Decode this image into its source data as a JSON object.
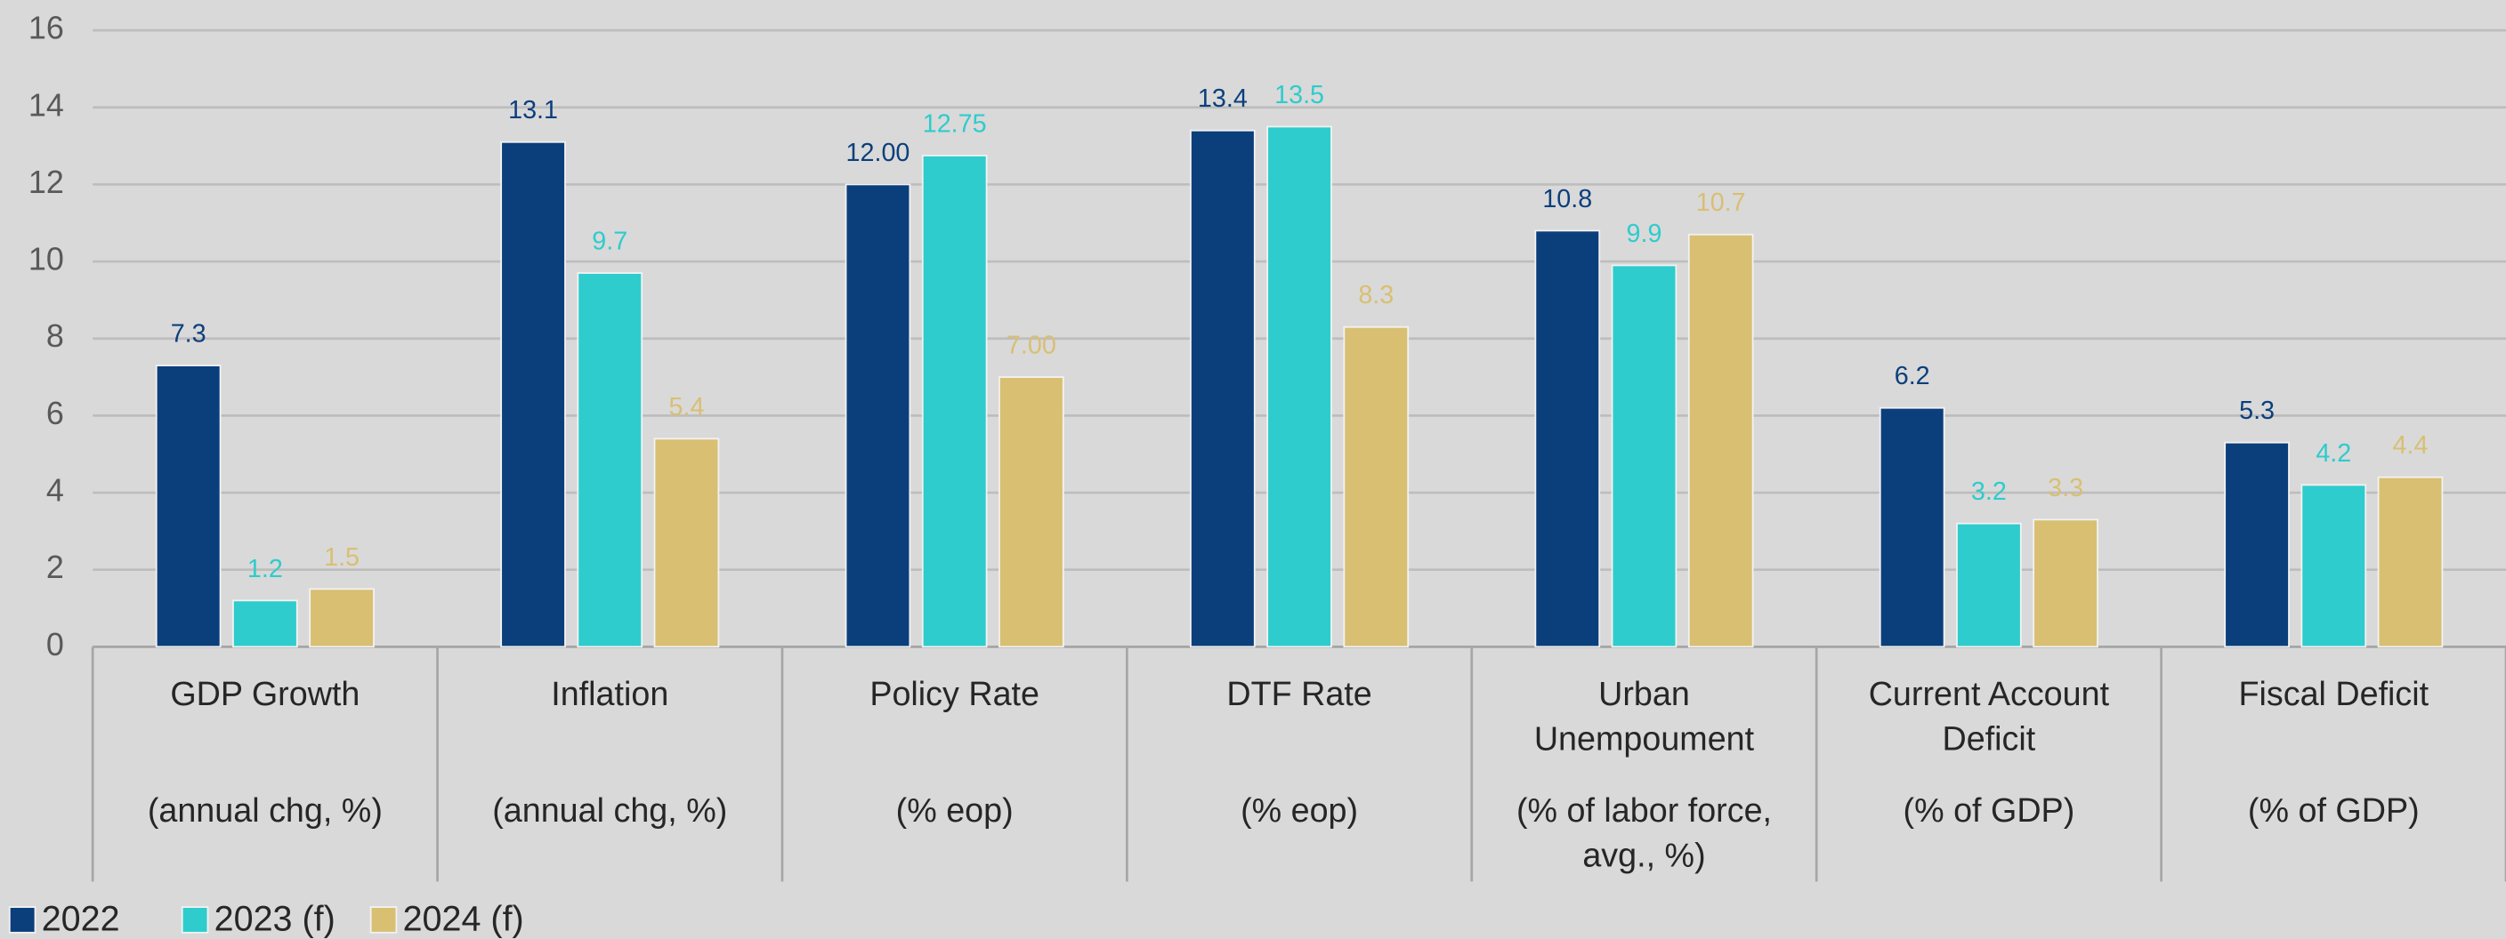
{
  "chart_data": {
    "type": "bar",
    "categories": [
      {
        "name": [
          "GDP Growth"
        ],
        "unit": [
          "(annual chg, %)"
        ]
      },
      {
        "name": [
          "Inflation"
        ],
        "unit": [
          "(annual chg, %)"
        ]
      },
      {
        "name": [
          "Policy Rate"
        ],
        "unit": [
          "(% eop)"
        ]
      },
      {
        "name": [
          "DTF Rate"
        ],
        "unit": [
          "(% eop)"
        ]
      },
      {
        "name": [
          "Urban",
          "Unempoument"
        ],
        "unit": [
          "(% of labor force,",
          "avg., %)"
        ]
      },
      {
        "name": [
          "Current Account",
          "Deficit"
        ],
        "unit": [
          "(% of GDP)"
        ]
      },
      {
        "name": [
          "Fiscal Deficit"
        ],
        "unit": [
          "(% of GDP)"
        ]
      }
    ],
    "series": [
      {
        "name": "2022",
        "color": "#0b3f7c",
        "values": [
          7.3,
          13.1,
          12,
          13.4,
          10.8,
          6.2,
          5.3
        ],
        "value_labels": [
          "7.3",
          "13.1",
          "12.00",
          "13.4",
          "10.8",
          "6.2",
          "5.3"
        ]
      },
      {
        "name": "2023 (f)",
        "color": "#2ecccc",
        "values": [
          1.2,
          9.7,
          12.75,
          13.5,
          9.9,
          3.2,
          4.2
        ],
        "value_labels": [
          "1.2",
          "9.7",
          "12.75",
          "13.5",
          "9.9",
          "3.2",
          "4.2"
        ]
      },
      {
        "name": "2024 (f)",
        "color": "#d9bf72",
        "values": [
          1.5,
          5.4,
          7,
          8.3,
          10.7,
          3.3,
          4.4
        ],
        "value_labels": [
          "1.5",
          "5.4",
          "7.00",
          "8.3",
          "10.7",
          "3.3",
          "4.4"
        ]
      }
    ],
    "ylim": [
      0,
      16
    ],
    "yticks": [
      0,
      2,
      4,
      6,
      8,
      10,
      12,
      14,
      16
    ],
    "grid": true,
    "legend": "bottom-left"
  }
}
